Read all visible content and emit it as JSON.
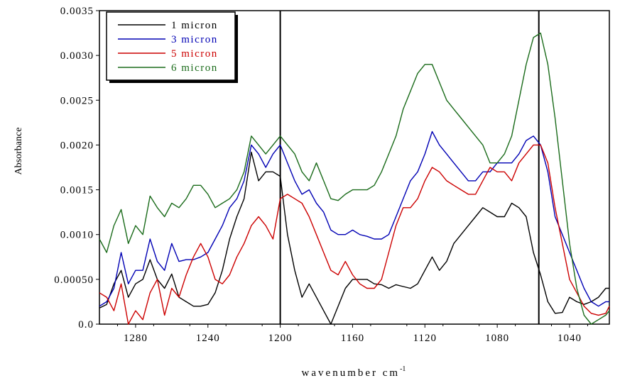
{
  "chart_data": {
    "type": "line",
    "xlabel": "wavenumber cm",
    "xlabel_superscript": "-1",
    "ylabel": "Absorbance",
    "xlim": [
      1300,
      1018
    ],
    "ylim": [
      0,
      0.0035
    ],
    "x_reversed": true,
    "x_ticks": [
      {
        "value": 1280,
        "label": "1280"
      },
      {
        "value": 1240,
        "label": "1240"
      },
      {
        "value": 1200,
        "label": "1200"
      },
      {
        "value": 1160,
        "label": "1160"
      },
      {
        "value": 1120,
        "label": "1120"
      },
      {
        "value": 1080,
        "label": "1080"
      },
      {
        "value": 1040,
        "label": "1040"
      }
    ],
    "y_ticks": [
      {
        "value": 0.0,
        "label": "0.0"
      },
      {
        "value": 0.0005,
        "label": "0.00050"
      },
      {
        "value": 0.001,
        "label": "0.0010"
      },
      {
        "value": 0.0015,
        "label": "0.0015"
      },
      {
        "value": 0.002,
        "label": "0.0020"
      },
      {
        "value": 0.0025,
        "label": "0.0025"
      },
      {
        "value": 0.003,
        "label": "0.0030"
      },
      {
        "value": 0.0035,
        "label": "0.0035"
      }
    ],
    "reference_lines_x": [
      1200,
      1057
    ],
    "legend_position": "top-left",
    "grid": false,
    "series": [
      {
        "name": "1 micron",
        "color": "#000000",
        "x": [
          1300,
          1296,
          1292,
          1288,
          1284,
          1280,
          1276,
          1272,
          1268,
          1264,
          1260,
          1256,
          1252,
          1248,
          1244,
          1240,
          1236,
          1232,
          1228,
          1224,
          1220,
          1216,
          1212,
          1208,
          1204,
          1200,
          1196,
          1192,
          1188,
          1184,
          1180,
          1176,
          1172,
          1168,
          1164,
          1160,
          1156,
          1152,
          1148,
          1144,
          1140,
          1136,
          1132,
          1128,
          1124,
          1120,
          1116,
          1112,
          1108,
          1104,
          1100,
          1096,
          1092,
          1088,
          1084,
          1080,
          1076,
          1072,
          1068,
          1064,
          1060,
          1056,
          1052,
          1048,
          1044,
          1040,
          1036,
          1032,
          1028,
          1024,
          1020,
          1018
        ],
        "y": [
          0.00018,
          0.00022,
          0.00045,
          0.0006,
          0.0003,
          0.00045,
          0.0005,
          0.00072,
          0.0005,
          0.0004,
          0.00056,
          0.0003,
          0.00025,
          0.0002,
          0.0002,
          0.00022,
          0.00035,
          0.0006,
          0.00095,
          0.0012,
          0.0014,
          0.00192,
          0.0016,
          0.0017,
          0.0017,
          0.00165,
          0.001,
          0.0006,
          0.0003,
          0.00045,
          0.0003,
          0.00015,
          0.0,
          0.0002,
          0.0004,
          0.0005,
          0.0005,
          0.0005,
          0.00045,
          0.00044,
          0.0004,
          0.00044,
          0.00042,
          0.0004,
          0.00045,
          0.0006,
          0.00075,
          0.0006,
          0.0007,
          0.0009,
          0.001,
          0.0011,
          0.0012,
          0.0013,
          0.00125,
          0.0012,
          0.0012,
          0.00135,
          0.0013,
          0.0012,
          0.0008,
          0.00055,
          0.00025,
          0.00012,
          0.00013,
          0.0003,
          0.00025,
          0.00022,
          0.00025,
          0.0003,
          0.0004,
          0.0004
        ]
      },
      {
        "name": "3 micron",
        "color": "#0000b4",
        "x": [
          1300,
          1296,
          1292,
          1288,
          1284,
          1280,
          1276,
          1272,
          1268,
          1264,
          1260,
          1256,
          1252,
          1248,
          1244,
          1240,
          1236,
          1232,
          1228,
          1224,
          1220,
          1216,
          1212,
          1208,
          1204,
          1200,
          1196,
          1192,
          1188,
          1184,
          1180,
          1176,
          1172,
          1168,
          1164,
          1160,
          1156,
          1152,
          1148,
          1144,
          1140,
          1136,
          1132,
          1128,
          1124,
          1120,
          1116,
          1112,
          1108,
          1104,
          1100,
          1096,
          1092,
          1088,
          1084,
          1080,
          1076,
          1072,
          1068,
          1064,
          1060,
          1056,
          1052,
          1048,
          1044,
          1040,
          1036,
          1032,
          1028,
          1024,
          1020,
          1018
        ],
        "y": [
          0.0002,
          0.00025,
          0.0004,
          0.0008,
          0.00045,
          0.0006,
          0.0006,
          0.00095,
          0.0007,
          0.0006,
          0.0009,
          0.0007,
          0.00072,
          0.00072,
          0.00075,
          0.0008,
          0.00095,
          0.0011,
          0.0013,
          0.0014,
          0.0016,
          0.002,
          0.0019,
          0.00175,
          0.0019,
          0.002,
          0.0018,
          0.0016,
          0.00145,
          0.0015,
          0.00135,
          0.00125,
          0.00105,
          0.001,
          0.001,
          0.00105,
          0.001,
          0.00098,
          0.00095,
          0.00095,
          0.001,
          0.0012,
          0.0014,
          0.0016,
          0.0017,
          0.0019,
          0.00215,
          0.002,
          0.0019,
          0.0018,
          0.0017,
          0.0016,
          0.0016,
          0.0017,
          0.0017,
          0.0018,
          0.0018,
          0.0018,
          0.0019,
          0.00205,
          0.0021,
          0.002,
          0.0017,
          0.0012,
          0.001,
          0.0008,
          0.0006,
          0.0004,
          0.00025,
          0.0002,
          0.00025,
          0.00025
        ]
      },
      {
        "name": "5 micron",
        "color": "#cc0000",
        "x": [
          1300,
          1296,
          1292,
          1288,
          1284,
          1280,
          1276,
          1272,
          1268,
          1264,
          1260,
          1256,
          1252,
          1248,
          1244,
          1240,
          1236,
          1232,
          1228,
          1224,
          1220,
          1216,
          1212,
          1208,
          1204,
          1200,
          1196,
          1192,
          1188,
          1184,
          1180,
          1176,
          1172,
          1168,
          1164,
          1160,
          1156,
          1152,
          1148,
          1144,
          1140,
          1136,
          1132,
          1128,
          1124,
          1120,
          1116,
          1112,
          1108,
          1104,
          1100,
          1096,
          1092,
          1088,
          1084,
          1080,
          1076,
          1072,
          1068,
          1064,
          1060,
          1056,
          1052,
          1048,
          1044,
          1040,
          1036,
          1032,
          1028,
          1024,
          1020,
          1018
        ],
        "y": [
          0.00035,
          0.0003,
          0.00015,
          0.00045,
          0.0,
          0.00015,
          5e-05,
          0.00035,
          0.0005,
          0.0001,
          0.0004,
          0.0003,
          0.00055,
          0.00075,
          0.0009,
          0.00075,
          0.0005,
          0.00045,
          0.00055,
          0.00075,
          0.0009,
          0.0011,
          0.0012,
          0.0011,
          0.00095,
          0.0014,
          0.00145,
          0.0014,
          0.00135,
          0.0012,
          0.001,
          0.0008,
          0.0006,
          0.00055,
          0.0007,
          0.00055,
          0.00045,
          0.0004,
          0.0004,
          0.0005,
          0.0008,
          0.0011,
          0.0013,
          0.0013,
          0.0014,
          0.0016,
          0.00175,
          0.0017,
          0.0016,
          0.00155,
          0.0015,
          0.00145,
          0.00145,
          0.0016,
          0.00175,
          0.0017,
          0.0017,
          0.0016,
          0.0018,
          0.0019,
          0.002,
          0.002,
          0.0018,
          0.0013,
          0.0009,
          0.0005,
          0.00035,
          0.0002,
          0.00012,
          0.0001,
          0.00012,
          0.0002
        ]
      },
      {
        "name": "6 micron",
        "color": "#1a6b1a",
        "x": [
          1300,
          1296,
          1292,
          1288,
          1284,
          1280,
          1276,
          1272,
          1268,
          1264,
          1260,
          1256,
          1252,
          1248,
          1244,
          1240,
          1236,
          1232,
          1228,
          1224,
          1220,
          1216,
          1212,
          1208,
          1204,
          1200,
          1196,
          1192,
          1188,
          1184,
          1180,
          1176,
          1172,
          1168,
          1164,
          1160,
          1156,
          1152,
          1148,
          1144,
          1140,
          1136,
          1132,
          1128,
          1124,
          1120,
          1116,
          1112,
          1108,
          1104,
          1100,
          1096,
          1092,
          1088,
          1084,
          1080,
          1076,
          1072,
          1068,
          1064,
          1060,
          1056,
          1052,
          1048,
          1044,
          1040,
          1036,
          1032,
          1028,
          1024,
          1020,
          1018
        ],
        "y": [
          0.00095,
          0.0008,
          0.0011,
          0.00128,
          0.0009,
          0.0011,
          0.001,
          0.00143,
          0.0013,
          0.0012,
          0.00135,
          0.0013,
          0.0014,
          0.00155,
          0.00155,
          0.00145,
          0.0013,
          0.00135,
          0.0014,
          0.0015,
          0.0017,
          0.0021,
          0.002,
          0.0019,
          0.002,
          0.0021,
          0.002,
          0.0019,
          0.0017,
          0.0016,
          0.0018,
          0.0016,
          0.0014,
          0.00138,
          0.00145,
          0.0015,
          0.0015,
          0.0015,
          0.00155,
          0.0017,
          0.0019,
          0.0021,
          0.0024,
          0.0026,
          0.0028,
          0.0029,
          0.0029,
          0.0027,
          0.0025,
          0.0024,
          0.0023,
          0.0022,
          0.0021,
          0.002,
          0.0018,
          0.0018,
          0.0019,
          0.0021,
          0.0025,
          0.0029,
          0.0032,
          0.00325,
          0.0029,
          0.0023,
          0.0016,
          0.0009,
          0.0004,
          0.0001,
          0.0,
          5e-05,
          0.0001,
          0.00015
        ]
      }
    ]
  }
}
